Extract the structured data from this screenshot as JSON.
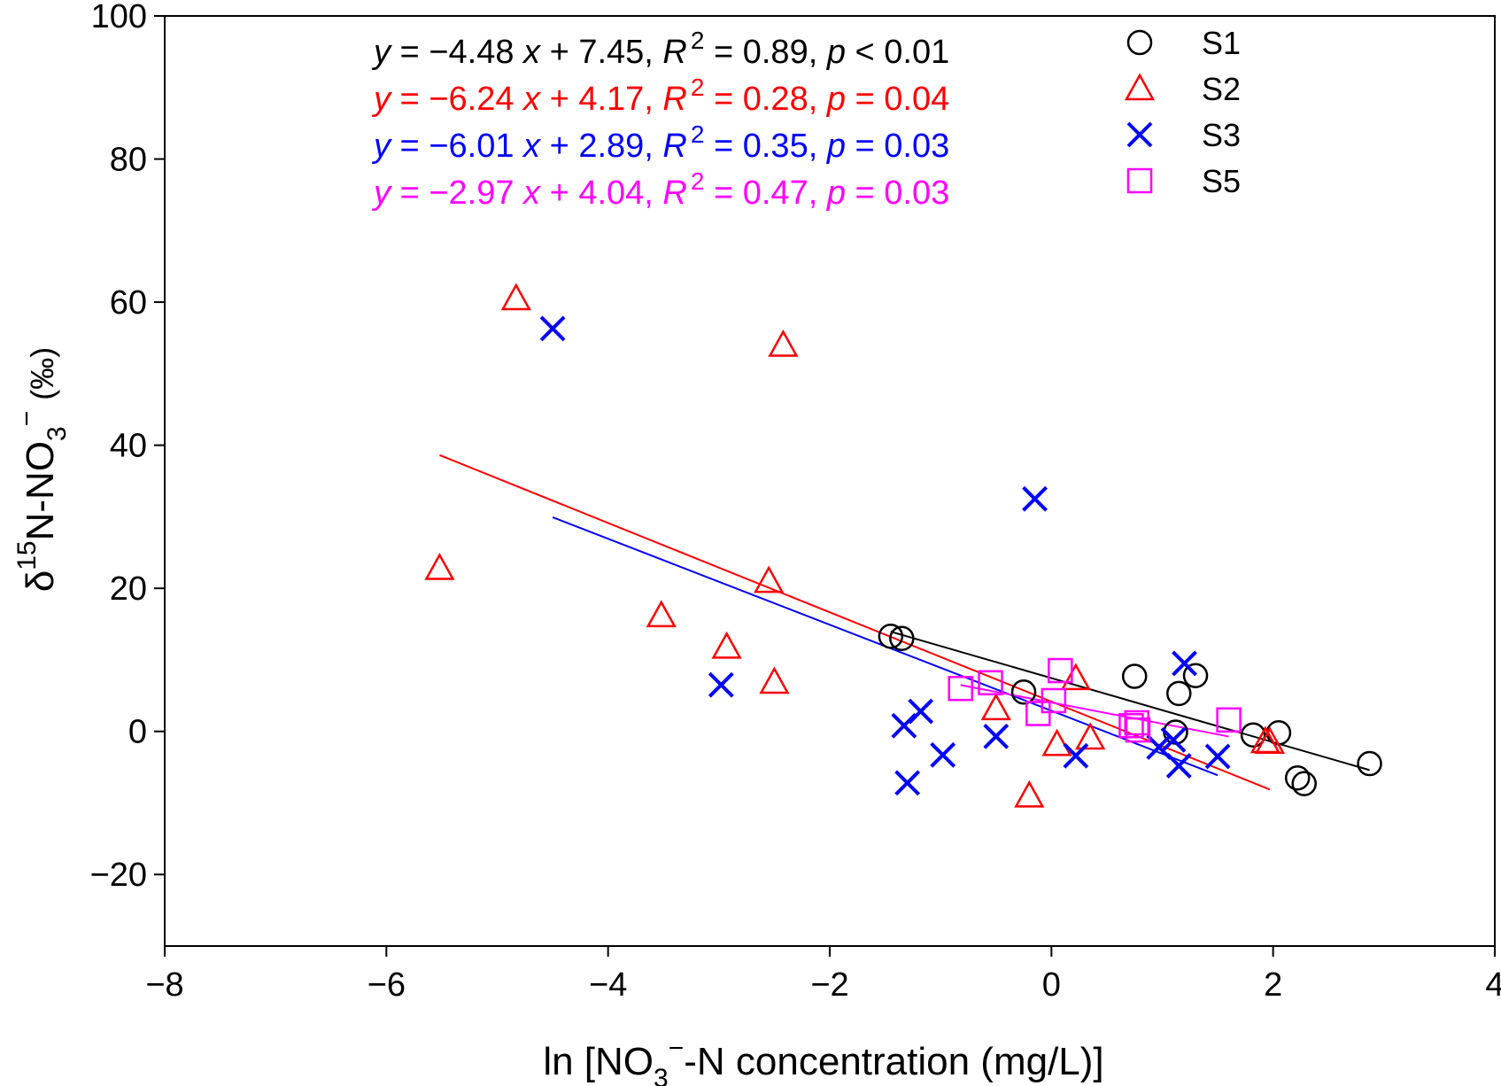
{
  "chart_data": {
    "type": "scatter",
    "title": "",
    "xlabel": {
      "pre": "ln [NO",
      "sub": "3",
      "sup": "−",
      "post": "-N concentration (mg/L)]"
    },
    "ylabel": {
      "delta": "δ",
      "sup15": "15",
      "mid": "N-NO",
      "sub3": "3",
      "supminus": "−",
      "post": "(‰)"
    },
    "xlim": [
      -8,
      4
    ],
    "ylim": [
      -30,
      100
    ],
    "xticks": [
      {
        "v": -8,
        "label": "−8"
      },
      {
        "v": -6,
        "label": "−6"
      },
      {
        "v": -4,
        "label": "−4"
      },
      {
        "v": -2,
        "label": "−2"
      },
      {
        "v": 0,
        "label": "0"
      },
      {
        "v": 2,
        "label": "2"
      },
      {
        "v": 4,
        "label": "4"
      }
    ],
    "yticks": [
      {
        "v": -20,
        "label": "−20"
      },
      {
        "v": 0,
        "label": "0"
      },
      {
        "v": 20,
        "label": "20"
      },
      {
        "v": 40,
        "label": "40"
      },
      {
        "v": 60,
        "label": "60"
      },
      {
        "v": 80,
        "label": "80"
      },
      {
        "v": 100,
        "label": "100"
      }
    ],
    "grid": false,
    "legend_position": "top-right",
    "series": [
      {
        "name": "S1",
        "marker": "circle",
        "color": "#000000",
        "points": [
          [
            -1.45,
            13.3
          ],
          [
            -1.35,
            13.0
          ],
          [
            -0.25,
            5.5
          ],
          [
            0.75,
            7.7
          ],
          [
            1.12,
            -0.1
          ],
          [
            1.15,
            5.3
          ],
          [
            1.3,
            7.8
          ],
          [
            1.82,
            -0.5
          ],
          [
            2.05,
            -0.2
          ],
          [
            2.22,
            -6.5
          ],
          [
            2.28,
            -7.3
          ],
          [
            2.87,
            -4.5
          ]
        ],
        "fit": {
          "x": [
            -1.45,
            2.87
          ],
          "slope": -4.48,
          "intercept": 7.45
        }
      },
      {
        "name": "S2",
        "marker": "triangle",
        "color": "#ff0000",
        "points": [
          [
            -5.52,
            22.8
          ],
          [
            -4.83,
            60.5
          ],
          [
            -3.52,
            16.2
          ],
          [
            -2.93,
            11.8
          ],
          [
            -2.55,
            21.0
          ],
          [
            -2.5,
            6.9
          ],
          [
            -2.42,
            54.0
          ],
          [
            -0.5,
            3.2
          ],
          [
            -0.2,
            -9.0
          ],
          [
            0.05,
            -1.8
          ],
          [
            0.22,
            7.4
          ],
          [
            0.35,
            -0.9
          ],
          [
            1.93,
            -1.4
          ],
          [
            1.97,
            -1.5
          ]
        ],
        "fit": {
          "x": [
            -5.52,
            1.97
          ],
          "slope": -6.24,
          "intercept": 4.17
        }
      },
      {
        "name": "S3",
        "marker": "x",
        "color": "#0000ff",
        "points": [
          [
            -4.5,
            56.3
          ],
          [
            -2.98,
            6.5
          ],
          [
            -1.33,
            0.8
          ],
          [
            -1.3,
            -7.2
          ],
          [
            -1.18,
            2.8
          ],
          [
            -0.98,
            -3.3
          ],
          [
            -0.5,
            -0.7
          ],
          [
            -0.15,
            32.5
          ],
          [
            0.22,
            -3.4
          ],
          [
            0.97,
            -2.2
          ],
          [
            1.1,
            -1.2
          ],
          [
            1.15,
            -4.8
          ],
          [
            1.2,
            9.5
          ],
          [
            1.5,
            -3.5
          ]
        ],
        "fit": {
          "x": [
            -4.5,
            1.5
          ],
          "slope": -6.01,
          "intercept": 2.89
        }
      },
      {
        "name": "S5",
        "marker": "square",
        "color": "#ff00ff",
        "points": [
          [
            -0.82,
            6.0
          ],
          [
            -0.55,
            6.8
          ],
          [
            -0.12,
            2.5
          ],
          [
            0.02,
            4.3
          ],
          [
            0.08,
            8.5
          ],
          [
            0.72,
            0.8
          ],
          [
            0.77,
            1.2
          ],
          [
            0.78,
            0.2
          ],
          [
            1.6,
            1.6
          ]
        ],
        "fit": {
          "x": [
            -0.82,
            1.6
          ],
          "slope": -2.97,
          "intercept": 4.04
        }
      }
    ],
    "equations": [
      {
        "color": "#000000",
        "y": "y",
        "eq1": " = −4.48 ",
        "x": "x",
        "eq2": " + 7.45, ",
        "R": "R",
        "sup": "2",
        "eq3": " = 0.89, ",
        "p": "p",
        "eq4": " < 0.01"
      },
      {
        "color": "#ff0000",
        "y": "y",
        "eq1": " = −6.24 ",
        "x": "x",
        "eq2": " + 4.17, ",
        "R": "R",
        "sup": "2",
        "eq3": " = 0.28, ",
        "p": "p",
        "eq4": " = 0.04"
      },
      {
        "color": "#0000ff",
        "y": "y",
        "eq1": " = −6.01 ",
        "x": "x",
        "eq2": " + 2.89, ",
        "R": "R",
        "sup": "2",
        "eq3": " = 0.35, ",
        "p": "p",
        "eq4": " = 0.03"
      },
      {
        "color": "#ff00ff",
        "y": "y",
        "eq1": " = −2.97 ",
        "x": "x",
        "eq2": " + 4.04, ",
        "R": "R",
        "sup": "2",
        "eq3": " = 0.47, ",
        "p": "p",
        "eq4": " = 0.03"
      }
    ]
  }
}
